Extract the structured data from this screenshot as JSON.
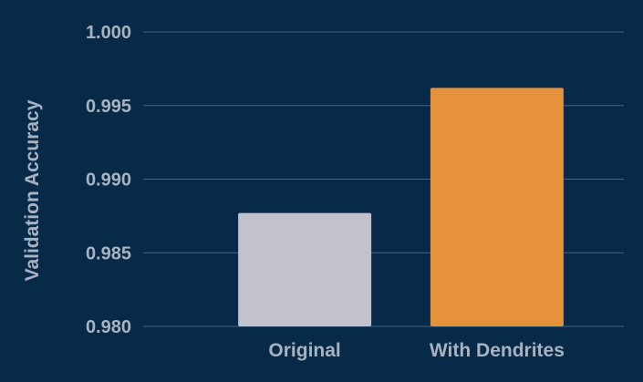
{
  "chart_data": {
    "type": "bar",
    "categories": [
      "Original",
      "With Dendrites"
    ],
    "values": [
      0.9877,
      0.9962
    ],
    "bar_colors": [
      "#c2c2cc",
      "#e6913b"
    ],
    "title": "",
    "xlabel": "",
    "ylabel": "Validation Accuracy",
    "ylim": [
      0.98,
      1.0
    ],
    "yticks": [
      0.98,
      0.985,
      0.99,
      0.995,
      1.0
    ],
    "ytick_labels": [
      "0.980",
      "0.985",
      "0.990",
      "0.995",
      "1.000"
    ],
    "grid": "horizontal",
    "legend": "none",
    "colors": {
      "background": "#062a48",
      "grid": "#3f6683",
      "text": "#a9b2c0"
    }
  }
}
